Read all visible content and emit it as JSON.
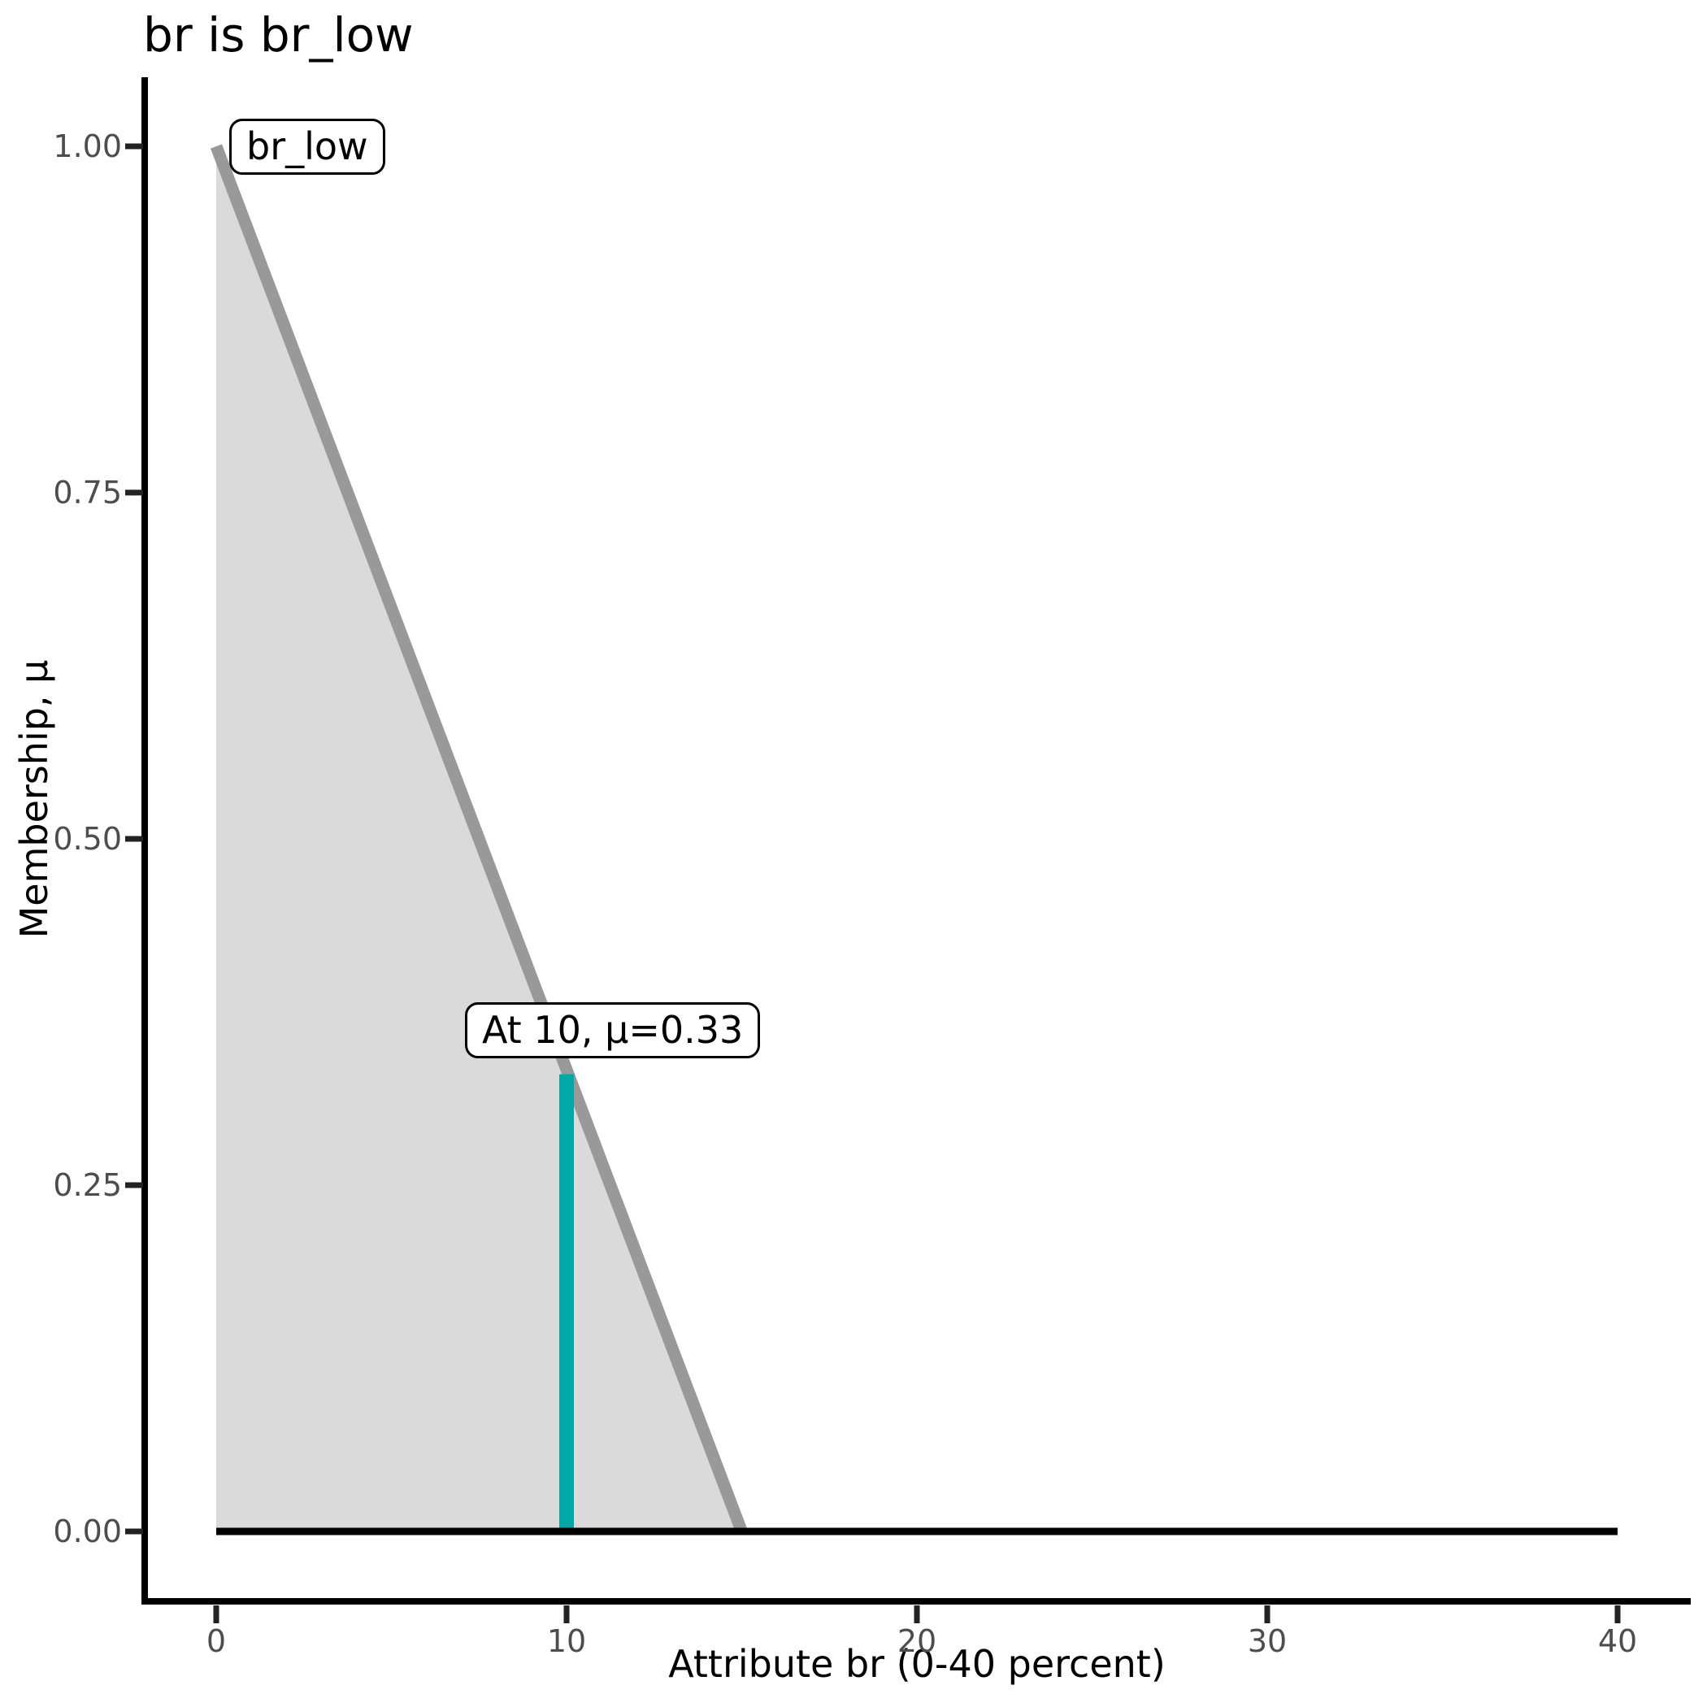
{
  "title": "br is br_low",
  "axes": {
    "x_label": "Attribute br (0-40 percent)",
    "y_label": "Membership, μ",
    "x_tick_labels": [
      "0",
      "10",
      "20",
      "30",
      "40"
    ],
    "y_tick_labels": [
      "0.00",
      "0.25",
      "0.50",
      "0.75",
      "1.00"
    ]
  },
  "annotations": {
    "set_label": "br_low",
    "point_label": "At 10, μ=0.33"
  },
  "colors": {
    "membership_line": "#999999",
    "membership_fill": "#DADADA",
    "baseline": "#000000",
    "input_line": "#00A9A8",
    "axis_line": "#000000",
    "tick_mark": "#222222",
    "tick_text": "#4D4D4D",
    "annotation_border": "#000000",
    "annotation_bg": "#FFFFFF"
  },
  "chart_data": {
    "type": "area",
    "title": "br is br_low",
    "xlabel": "Attribute br (0-40 percent)",
    "ylabel": "Membership, μ",
    "xlim": [
      0,
      40
    ],
    "ylim": [
      0,
      1
    ],
    "x_ticks": [
      0,
      10,
      20,
      30,
      40
    ],
    "y_ticks": [
      0,
      0.25,
      0.5,
      0.75,
      1
    ],
    "grid": false,
    "legend": "none",
    "series": [
      {
        "name": "br_low-membership-function",
        "type": "line",
        "color": "#999999",
        "fill": "#DADADA",
        "width": 15,
        "points": [
          [
            0,
            1
          ],
          [
            15,
            0
          ]
        ]
      },
      {
        "name": "crisp-input-line",
        "type": "line",
        "color": "#00A9A8",
        "width": 18,
        "points": [
          [
            10,
            0
          ],
          [
            10,
            0.33
          ]
        ]
      },
      {
        "name": "zero-baseline",
        "type": "line",
        "color": "#000000",
        "width": 9,
        "points": [
          [
            0,
            0
          ],
          [
            40,
            0
          ]
        ]
      }
    ],
    "annotations": [
      {
        "label": "br_low",
        "x": 0.4,
        "y": 1.0
      },
      {
        "label": "At 10, μ=0.33",
        "x": 7.1,
        "y": 0.36
      }
    ]
  }
}
